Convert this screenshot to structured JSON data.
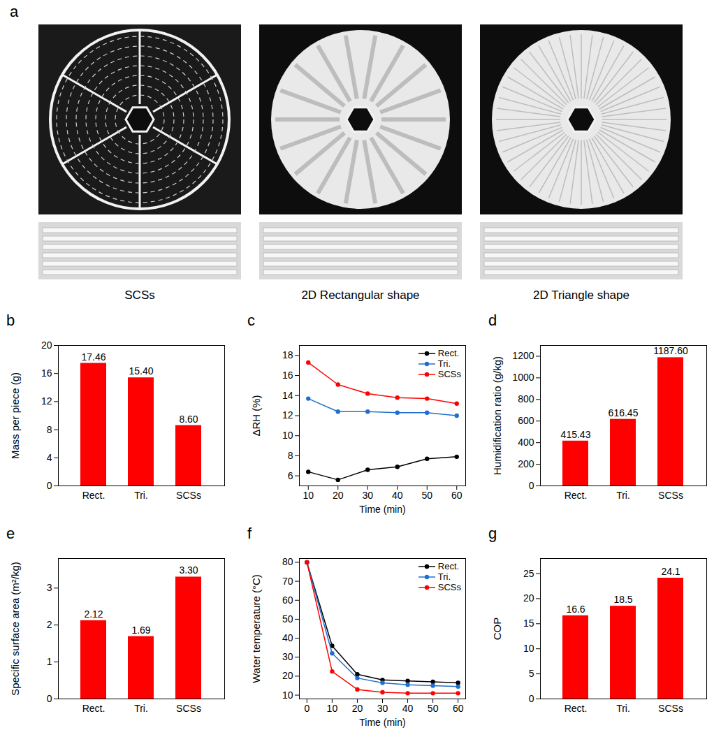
{
  "panel_a": {
    "panel": "a",
    "images": [
      "SCSs",
      "2D Rectangular shape",
      "2D Triangle shape"
    ]
  },
  "chart_data": [
    {
      "panel": "b",
      "type": "bar",
      "categories": [
        "Rect.",
        "Tri.",
        "SCSs"
      ],
      "values": [
        17.46,
        15.4,
        8.6
      ],
      "value_labels": [
        "17.46",
        "15.40",
        "8.60"
      ],
      "data_labels": true,
      "color": "#ff0000",
      "ylabel": "Mass per piece (g)",
      "ylim": [
        0,
        20
      ],
      "yticks": [
        0,
        4,
        8,
        12,
        16,
        20
      ]
    },
    {
      "panel": "c",
      "type": "line",
      "xlabel": "Time (min)",
      "ylabel": "ΔRH (%)",
      "x": [
        10,
        20,
        30,
        40,
        50,
        60
      ],
      "xlim": [
        7,
        63
      ],
      "xticks": [
        10,
        20,
        30,
        40,
        50,
        60
      ],
      "ylim": [
        5,
        19
      ],
      "yticks": [
        6,
        8,
        10,
        12,
        14,
        16,
        18
      ],
      "legend": "upper right",
      "marker": "circle",
      "series": [
        {
          "name": "Rect.",
          "color": "#000000",
          "values": [
            6.4,
            5.6,
            6.6,
            6.9,
            7.7,
            7.9
          ]
        },
        {
          "name": "Tri.",
          "color": "#1f6fd1",
          "values": [
            13.7,
            12.4,
            12.4,
            12.3,
            12.3,
            12.0
          ]
        },
        {
          "name": "SCSs",
          "color": "#ff0000",
          "values": [
            17.3,
            15.1,
            14.2,
            13.8,
            13.7,
            13.2
          ]
        }
      ]
    },
    {
      "panel": "d",
      "type": "bar",
      "categories": [
        "Rect.",
        "Tri.",
        "SCSs"
      ],
      "values": [
        415.43,
        616.45,
        1187.6
      ],
      "value_labels": [
        "415.43",
        "616.45",
        "1187.60"
      ],
      "data_labels": true,
      "color": "#ff0000",
      "ylabel": "Humidification ratio (g/kg)",
      "ylim": [
        0,
        1300
      ],
      "yticks": [
        0,
        200,
        400,
        600,
        800,
        1000,
        1200
      ]
    },
    {
      "panel": "e",
      "type": "bar",
      "categories": [
        "Rect.",
        "Tri.",
        "SCSs"
      ],
      "values": [
        2.12,
        1.69,
        3.3
      ],
      "value_labels": [
        "2.12",
        "1.69",
        "3.30"
      ],
      "data_labels": true,
      "color": "#ff0000",
      "ylabel": "Specific surface area (m²/kg)",
      "ylim": [
        0,
        3.8
      ],
      "yticks": [
        0,
        1,
        2,
        3
      ]
    },
    {
      "panel": "f",
      "type": "line",
      "xlabel": "Time (min)",
      "ylabel": "Water temperature (°C)",
      "x": [
        0,
        10,
        20,
        30,
        40,
        50,
        60
      ],
      "xlim": [
        -3,
        63
      ],
      "xticks": [
        0,
        10,
        20,
        30,
        40,
        50,
        60
      ],
      "ylim": [
        8,
        82
      ],
      "yticks": [
        10,
        20,
        30,
        40,
        50,
        60,
        70,
        80
      ],
      "legend": "upper right",
      "marker": "circle",
      "series": [
        {
          "name": "Rect.",
          "color": "#000000",
          "values": [
            80,
            36,
            21,
            18,
            17.5,
            17,
            16.5
          ]
        },
        {
          "name": "Tri.",
          "color": "#1f6fd1",
          "values": [
            80,
            32,
            19,
            16.5,
            15.5,
            15,
            14.5
          ]
        },
        {
          "name": "SCSs",
          "color": "#ff0000",
          "values": [
            80,
            22.5,
            13,
            11.5,
            11,
            11,
            11
          ]
        }
      ]
    },
    {
      "panel": "g",
      "type": "bar",
      "categories": [
        "Rect.",
        "Tri.",
        "SCSs"
      ],
      "values": [
        16.6,
        18.5,
        24.1
      ],
      "data_labels": true,
      "color": "#ff0000",
      "ylabel": "COP",
      "ylim": [
        0,
        28
      ],
      "yticks": [
        0,
        5,
        10,
        15,
        20,
        25
      ]
    }
  ]
}
